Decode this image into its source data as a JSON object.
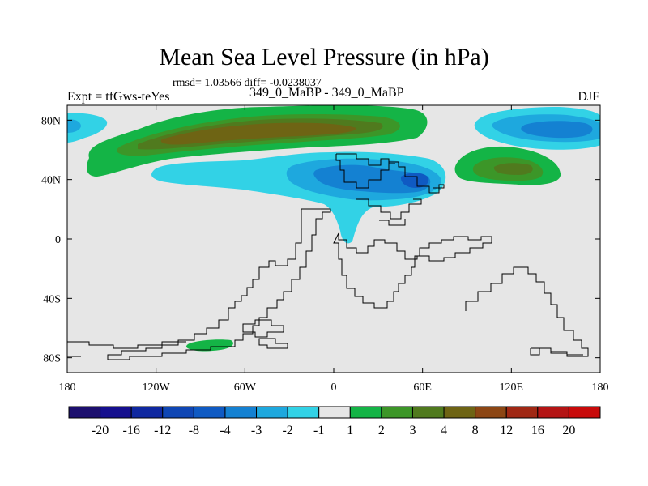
{
  "title": "Mean Sea Level Pressure (in hPa)",
  "stats": "rmsd= 1.03566 diff= -0.0238037",
  "experiment": "Expt = tfGws-teYes",
  "subtitle": "349_0_MaBP - 349_0_MaBP",
  "season": "DJF",
  "map_data": {
    "type": "filled-contour-map",
    "projection": "cylindrical-equidistant",
    "lon_range": [
      -180,
      180
    ],
    "lat_range": [
      -90,
      90
    ],
    "y_tick_labels": [
      "80N",
      "40N",
      "0",
      "40S",
      "80S"
    ],
    "x_tick_labels": [
      "180",
      "120W",
      "60W",
      "0",
      "60E",
      "120E",
      "180"
    ],
    "colorbar_labels": [
      "-20",
      "-16",
      "-12",
      "-8",
      "-4",
      "-3",
      "-2",
      "-1",
      "1",
      "2",
      "3",
      "4",
      "8",
      "12",
      "16",
      "20"
    ],
    "colorbar_colors": [
      "#1c0f6e",
      "#150f8e",
      "#0f28a0",
      "#0f46b4",
      "#0f5ac3",
      "#1481d2",
      "#1ea8de",
      "#32d2e6",
      "#e6e6e6",
      "#14b446",
      "#3c9628",
      "#507a1e",
      "#6e6414",
      "#8c4614",
      "#a02814",
      "#b41414",
      "#c80a0a"
    ]
  }
}
